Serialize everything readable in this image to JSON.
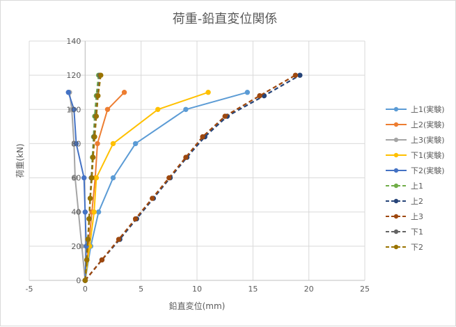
{
  "chart_data": {
    "type": "line",
    "title": "荷重-鉛直変位関係",
    "xlabel": "鉛直変位(mm)",
    "ylabel": "荷重(kN)",
    "xlim": [
      -5,
      25
    ],
    "ylim": [
      0,
      140
    ],
    "x_ticks": [
      -5,
      0,
      5,
      10,
      15,
      20,
      25
    ],
    "y_ticks": [
      0,
      20,
      40,
      60,
      80,
      100,
      120,
      140
    ],
    "grid": true,
    "legend_position": "right",
    "series": [
      {
        "name": "上1(実験)",
        "style": "solid",
        "color": "#5B9BD5",
        "points": [
          [
            0,
            0
          ],
          [
            0.5,
            20
          ],
          [
            1.2,
            40
          ],
          [
            2.5,
            60
          ],
          [
            4.5,
            80
          ],
          [
            9,
            100
          ],
          [
            14.5,
            110
          ]
        ]
      },
      {
        "name": "上2(実験)",
        "style": "solid",
        "color": "#ED7D31",
        "points": [
          [
            0,
            0
          ],
          [
            0.3,
            20
          ],
          [
            0.6,
            40
          ],
          [
            0.9,
            60
          ],
          [
            1.1,
            80
          ],
          [
            2,
            100
          ],
          [
            3.5,
            110
          ]
        ]
      },
      {
        "name": "上3(実験)",
        "style": "solid",
        "color": "#A5A5A5",
        "points": [
          [
            0,
            0
          ],
          [
            -0.3,
            20
          ],
          [
            -0.6,
            40
          ],
          [
            -0.9,
            60
          ],
          [
            -1.0,
            80
          ],
          [
            -1.2,
            100
          ],
          [
            -1.4,
            110
          ]
        ]
      },
      {
        "name": "下1(実験)",
        "style": "solid",
        "color": "#FFC000",
        "points": [
          [
            0,
            0
          ],
          [
            0.4,
            20
          ],
          [
            0.8,
            40
          ],
          [
            1.0,
            60
          ],
          [
            2.5,
            80
          ],
          [
            6.5,
            100
          ],
          [
            11,
            110
          ]
        ]
      },
      {
        "name": "下2(実験)",
        "style": "solid",
        "color": "#4472C4",
        "points": [
          [
            0,
            0
          ],
          [
            0.1,
            20
          ],
          [
            0,
            40
          ],
          [
            -0.1,
            60
          ],
          [
            -0.8,
            80
          ],
          [
            -1.0,
            100
          ],
          [
            -1.5,
            110
          ]
        ]
      },
      {
        "name": "上1",
        "style": "dashed",
        "color": "#70AD47",
        "points": [
          [
            0,
            0
          ],
          [
            0.15,
            12
          ],
          [
            0.25,
            24
          ],
          [
            0.35,
            36
          ],
          [
            0.45,
            48
          ],
          [
            0.55,
            60
          ],
          [
            0.65,
            72
          ],
          [
            0.75,
            84
          ],
          [
            0.85,
            96
          ],
          [
            1.0,
            108
          ],
          [
            1.2,
            120
          ]
        ]
      },
      {
        "name": "上2",
        "style": "dashed",
        "color": "#264478",
        "points": [
          [
            0,
            0
          ],
          [
            1.5,
            12
          ],
          [
            3.1,
            24
          ],
          [
            4.6,
            36
          ],
          [
            6.1,
            48
          ],
          [
            7.6,
            60
          ],
          [
            9.1,
            72
          ],
          [
            10.7,
            84
          ],
          [
            12.7,
            96
          ],
          [
            16,
            108
          ],
          [
            19.2,
            120
          ]
        ]
      },
      {
        "name": "上3",
        "style": "dashed",
        "color": "#9E480E",
        "points": [
          [
            0,
            0
          ],
          [
            1.5,
            12
          ],
          [
            3.0,
            24
          ],
          [
            4.5,
            36
          ],
          [
            6.0,
            48
          ],
          [
            7.5,
            60
          ],
          [
            9.0,
            72
          ],
          [
            10.5,
            84
          ],
          [
            12.5,
            96
          ],
          [
            15.6,
            108
          ],
          [
            18.8,
            120
          ]
        ]
      },
      {
        "name": "下1",
        "style": "dashed",
        "color": "#636363",
        "points": [
          [
            0,
            0
          ],
          [
            0.15,
            12
          ],
          [
            0.25,
            24
          ],
          [
            0.35,
            36
          ],
          [
            0.45,
            48
          ],
          [
            0.55,
            60
          ],
          [
            0.7,
            72
          ],
          [
            0.8,
            84
          ],
          [
            0.95,
            96
          ],
          [
            1.1,
            108
          ],
          [
            1.3,
            120
          ]
        ]
      },
      {
        "name": "下2",
        "style": "dashed",
        "color": "#997300",
        "points": [
          [
            0,
            0
          ],
          [
            0.15,
            12
          ],
          [
            0.25,
            24
          ],
          [
            0.35,
            36
          ],
          [
            0.45,
            48
          ],
          [
            0.6,
            60
          ],
          [
            0.7,
            72
          ],
          [
            0.85,
            84
          ],
          [
            1.0,
            96
          ],
          [
            1.15,
            108
          ],
          [
            1.4,
            120
          ]
        ]
      }
    ]
  }
}
